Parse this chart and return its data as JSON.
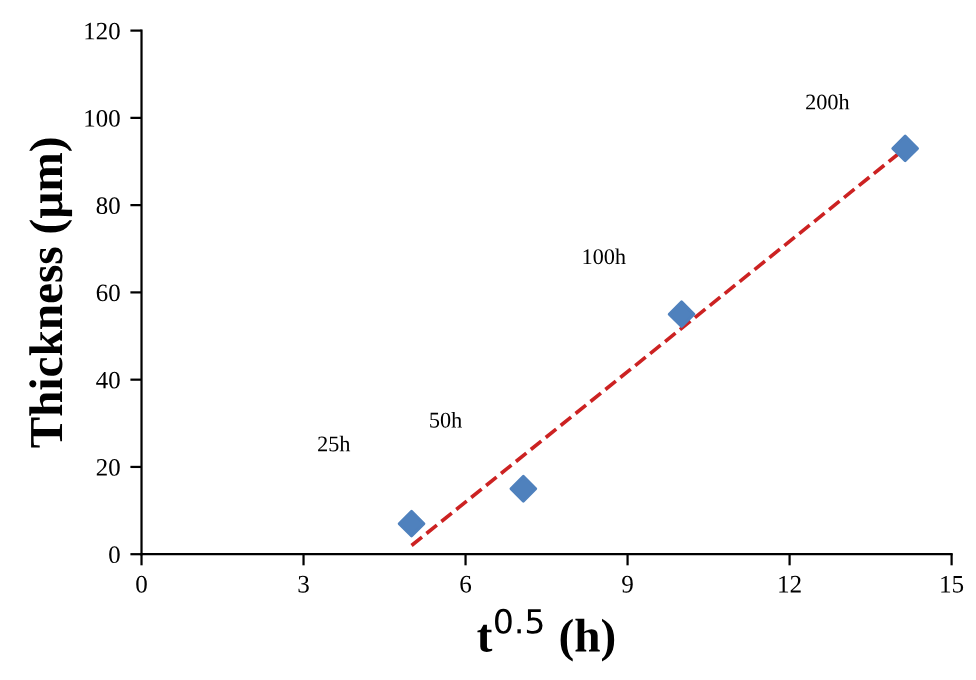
{
  "chart_data": {
    "type": "scatter",
    "xlabel": "t$^{0.5}$ (h)",
    "ylabel": "Thickness (µm)",
    "xlim": [
      0,
      15
    ],
    "xticks": [
      0,
      3,
      6,
      9,
      12,
      15
    ],
    "ylim": [
      0,
      120
    ],
    "yticks": [
      0,
      20,
      40,
      60,
      80,
      100,
      120
    ],
    "grid": false,
    "legend": false,
    "marker": "diamond",
    "series": [
      {
        "color": "#4f81bd",
        "x": [
          5,
          7.07,
          10,
          14.14
        ],
        "values": [
          7,
          15,
          55,
          93
        ]
      },
      {
        "type": "line",
        "color": "#cc2222",
        "line_style": "dashed",
        "marker": "none",
        "x": [
          5.0,
          14.14
        ],
        "values": [
          2,
          93
        ]
      }
    ],
    "annotations": [
      "25h",
      "50h",
      "100h",
      "200h"
    ]
  }
}
